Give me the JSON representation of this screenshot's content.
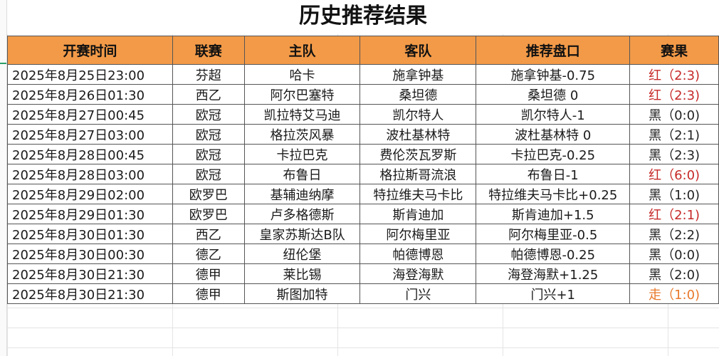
{
  "title": "历史推荐结果",
  "headers": [
    "开赛时间",
    "联赛",
    "主队",
    "客队",
    "推荐盘口",
    "赛果"
  ],
  "rows": [
    {
      "time": "2025年8月25日23:00",
      "league": "芬超",
      "home": "哈卡",
      "away": "施拿钟基",
      "pick": "施拿钟基-0.75",
      "result": "红（2:3)",
      "status": "red"
    },
    {
      "time": "2025年8月26日01:30",
      "league": "西乙",
      "home": "阿尔巴塞特",
      "away": "桑坦德",
      "pick": "桑坦德 0",
      "result": "红（2:3)",
      "status": "red"
    },
    {
      "time": "2025年8月27日00:45",
      "league": "欧冠",
      "home": "凯拉特艾马迪",
      "away": "凯尔特人",
      "pick": "凯尔特人-1",
      "result": "黑（0:0)",
      "status": "black"
    },
    {
      "time": "2025年8月27日03:00",
      "league": "欧冠",
      "home": "格拉茨风暴",
      "away": "波杜基林特",
      "pick": "波杜基林特 0",
      "result": "黑（2:1)",
      "status": "black"
    },
    {
      "time": "2025年8月28日00:45",
      "league": "欧冠",
      "home": "卡拉巴克",
      "away": "费伦茨瓦罗斯",
      "pick": "卡拉巴克-0.25",
      "result": "黑（2:3)",
      "status": "black"
    },
    {
      "time": "2025年8月28日03:00",
      "league": "欧冠",
      "home": "布鲁日",
      "away": "格拉斯哥流浪",
      "pick": "布鲁日-1",
      "result": "红（6:0)",
      "status": "red"
    },
    {
      "time": "2025年8月29日02:00",
      "league": "欧罗巴",
      "home": "基辅迪纳摩",
      "away": "特拉维夫马卡比",
      "pick": "特拉维夫马卡比+0.25",
      "result": "黑（1:0)",
      "status": "black"
    },
    {
      "time": "2025年8月29日01:30",
      "league": "欧罗巴",
      "home": "卢多格德斯",
      "away": "斯肯迪加",
      "pick": "斯肯迪加+1.5",
      "result": "红（2:1)",
      "status": "red"
    },
    {
      "time": "2025年8月30日01:30",
      "league": "西乙",
      "home": "皇家苏斯达B队",
      "away": "阿尔梅里亚",
      "pick": "阿尔梅里亚-0.5",
      "result": "黑（2:2)",
      "status": "black"
    },
    {
      "time": "2025年8月30日00:30",
      "league": "德乙",
      "home": "纽伦堡",
      "away": "帕德博恩",
      "pick": "帕德博恩-0.25",
      "result": "黑（0:0)",
      "status": "black"
    },
    {
      "time": "2025年8月30日21:30",
      "league": "德甲",
      "home": "莱比锡",
      "away": "海登海默",
      "pick": "海登海默+1.25",
      "result": "黑（2:0)",
      "status": "black"
    },
    {
      "time": "2025年8月30日21:30",
      "league": "德甲",
      "home": "斯图加特",
      "away": "门兴",
      "pick": "门兴+1",
      "result": "走（1:0)",
      "status": "orange"
    }
  ],
  "colors": {
    "header": "#F29A48",
    "red": "#C62828",
    "black": "#222222",
    "orange": "#E8782A"
  }
}
